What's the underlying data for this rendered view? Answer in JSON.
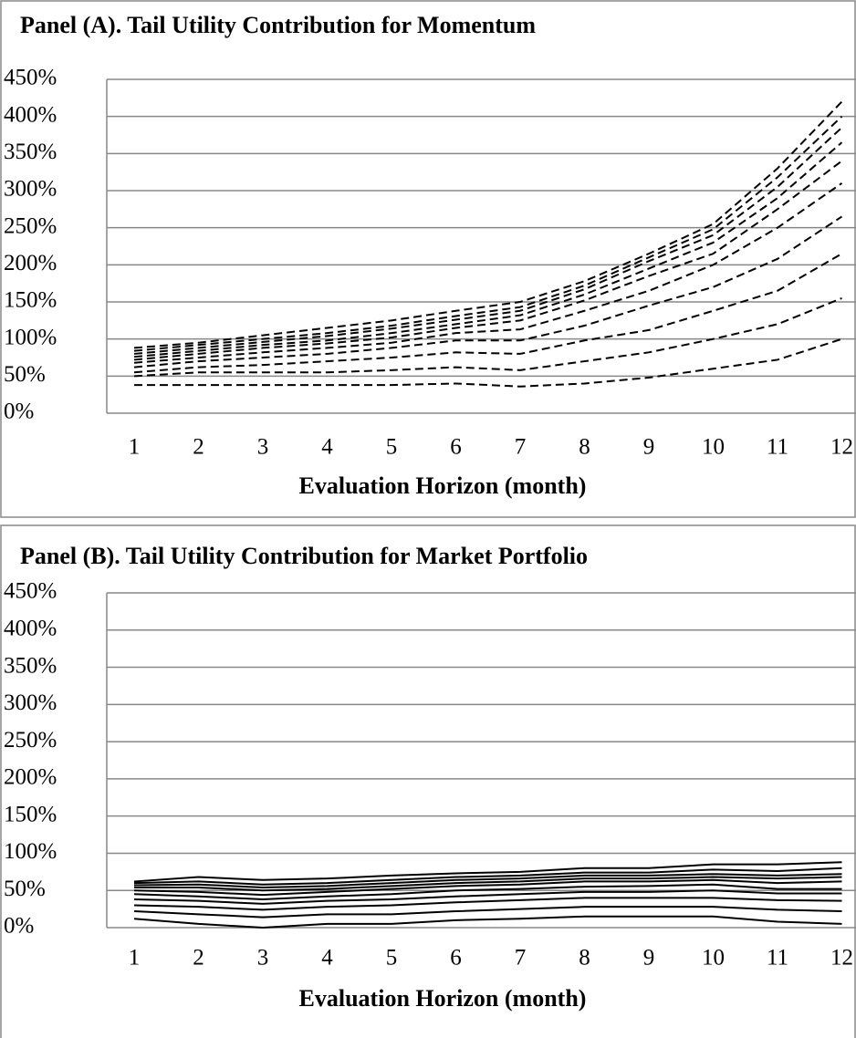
{
  "chart_data": [
    {
      "type": "line",
      "title": "Panel (A). Tail Utility Contribution for Momentum",
      "x_label": "Evaluation Horizon (month)",
      "categories": [
        "1",
        "2",
        "3",
        "4",
        "5",
        "6",
        "7",
        "8",
        "9",
        "10",
        "11",
        "12"
      ],
      "line_style": "dashed",
      "grid": true,
      "ylim": [
        0,
        450
      ],
      "yticks": [
        {
          "value": 0,
          "label": "0%"
        },
        {
          "value": 50,
          "label": "50%"
        },
        {
          "value": 100,
          "label": "100%"
        },
        {
          "value": 150,
          "label": "150%"
        },
        {
          "value": 200,
          "label": "200%"
        },
        {
          "value": 250,
          "label": "250%"
        },
        {
          "value": 300,
          "label": "300%"
        },
        {
          "value": 350,
          "label": "350%"
        },
        {
          "value": 400,
          "label": "400%"
        },
        {
          "value": 450,
          "label": "450%"
        }
      ],
      "series": [
        {
          "color": "#000000",
          "values": [
            38,
            38,
            38,
            38,
            38,
            40,
            36,
            40,
            48,
            60,
            72,
            100
          ]
        },
        {
          "color": "#000000",
          "values": [
            50,
            55,
            55,
            55,
            58,
            62,
            58,
            70,
            82,
            100,
            120,
            155
          ]
        },
        {
          "color": "#000000",
          "values": [
            55,
            62,
            65,
            70,
            75,
            82,
            80,
            98,
            112,
            138,
            165,
            215
          ]
        },
        {
          "color": "#000000",
          "values": [
            62,
            70,
            75,
            80,
            88,
            98,
            98,
            118,
            145,
            170,
            208,
            265
          ]
        },
        {
          "color": "#000000",
          "values": [
            68,
            75,
            82,
            88,
            95,
            108,
            113,
            138,
            165,
            200,
            250,
            310
          ]
        },
        {
          "color": "#000000",
          "values": [
            72,
            80,
            88,
            94,
            102,
            115,
            125,
            152,
            185,
            215,
            275,
            340
          ]
        },
        {
          "color": "#000000",
          "values": [
            76,
            84,
            92,
            98,
            108,
            120,
            132,
            160,
            195,
            230,
            290,
            365
          ]
        },
        {
          "color": "#000000",
          "values": [
            80,
            88,
            96,
            104,
            114,
            126,
            138,
            167,
            205,
            240,
            305,
            385
          ]
        },
        {
          "color": "#000000",
          "values": [
            84,
            92,
            100,
            108,
            118,
            131,
            143,
            172,
            210,
            248,
            318,
            400
          ]
        },
        {
          "color": "#000000",
          "values": [
            88,
            95,
            105,
            115,
            125,
            138,
            150,
            178,
            215,
            255,
            330,
            420
          ]
        }
      ]
    },
    {
      "type": "line",
      "title": "Panel (B). Tail Utility Contribution for Market Portfolio",
      "x_label": "Evaluation Horizon (month)",
      "categories": [
        "1",
        "2",
        "3",
        "4",
        "5",
        "6",
        "7",
        "8",
        "9",
        "10",
        "11",
        "12"
      ],
      "line_style": "solid",
      "grid": true,
      "ylim": [
        0,
        450
      ],
      "yticks": [
        {
          "value": 0,
          "label": "0%"
        },
        {
          "value": 50,
          "label": "50%"
        },
        {
          "value": 100,
          "label": "100%"
        },
        {
          "value": 150,
          "label": "150%"
        },
        {
          "value": 200,
          "label": "200%"
        },
        {
          "value": 250,
          "label": "250%"
        },
        {
          "value": 300,
          "label": "300%"
        },
        {
          "value": 350,
          "label": "350%"
        },
        {
          "value": 400,
          "label": "400%"
        },
        {
          "value": 450,
          "label": "450%"
        }
      ],
      "series": [
        {
          "color": "#000000",
          "values": [
            12,
            5,
            0,
            5,
            5,
            10,
            12,
            15,
            15,
            15,
            8,
            5
          ]
        },
        {
          "color": "#000000",
          "values": [
            22,
            18,
            14,
            18,
            18,
            22,
            25,
            28,
            28,
            28,
            24,
            22
          ]
        },
        {
          "color": "#000000",
          "values": [
            30,
            28,
            24,
            28,
            30,
            34,
            37,
            40,
            40,
            40,
            37,
            36
          ]
        },
        {
          "color": "#000000",
          "values": [
            38,
            36,
            32,
            36,
            38,
            42,
            45,
            48,
            48,
            50,
            46,
            46
          ]
        },
        {
          "color": "#000000",
          "values": [
            45,
            42,
            38,
            42,
            45,
            50,
            52,
            55,
            56,
            58,
            52,
            52
          ]
        },
        {
          "color": "#000000",
          "values": [
            50,
            48,
            44,
            48,
            52,
            56,
            58,
            62,
            62,
            64,
            60,
            62
          ]
        },
        {
          "color": "#000000",
          "values": [
            54,
            54,
            50,
            52,
            56,
            60,
            62,
            66,
            66,
            68,
            66,
            68
          ]
        },
        {
          "color": "#000000",
          "values": [
            57,
            58,
            54,
            56,
            60,
            64,
            66,
            70,
            70,
            72,
            70,
            72
          ]
        },
        {
          "color": "#000000",
          "values": [
            60,
            62,
            58,
            60,
            64,
            68,
            70,
            74,
            74,
            78,
            76,
            80
          ]
        },
        {
          "color": "#000000",
          "values": [
            62,
            68,
            64,
            66,
            70,
            73,
            75,
            80,
            80,
            85,
            85,
            88
          ]
        }
      ]
    }
  ]
}
